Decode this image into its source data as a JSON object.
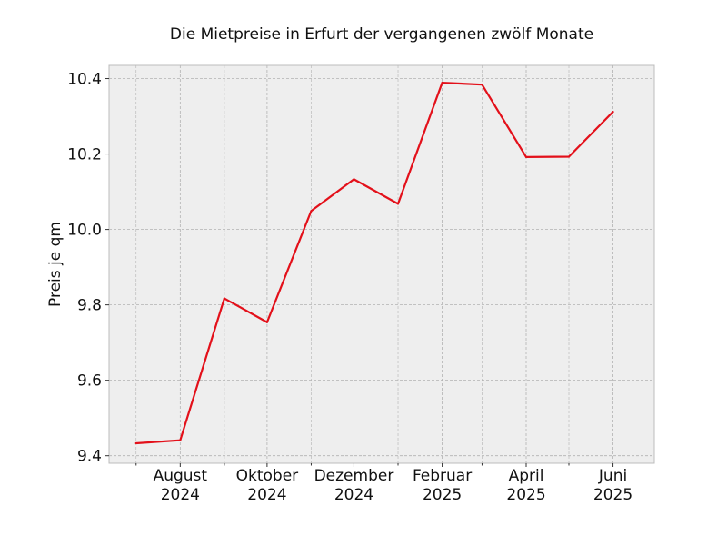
{
  "chart_data": {
    "type": "line",
    "title": "Die Mietpreise in Erfurt der vergangenen zwölf Monate",
    "xlabel": "",
    "ylabel": "Preis je qm",
    "x": [
      "2024-07",
      "2024-08",
      "2024-09",
      "2024-10",
      "2024-11",
      "2024-12",
      "2025-01",
      "2025-02",
      "2025-03",
      "2025-04",
      "2025-05",
      "2025-06"
    ],
    "series": [
      {
        "values": [
          9.433,
          9.441,
          9.817,
          9.754,
          10.049,
          10.133,
          10.068,
          10.389,
          10.384,
          10.192,
          10.193,
          10.312
        ],
        "color": "#e3101a"
      }
    ],
    "ylim": [
      9.38,
      10.435
    ],
    "xlim": [
      "2024-06-12",
      "2025-06-30"
    ],
    "y_ticks": [
      "9.4",
      "9.6",
      "9.8",
      "10.0",
      "10.2",
      "10.4"
    ],
    "y_tick_values": [
      9.4,
      9.6,
      9.8,
      10.0,
      10.2,
      10.4
    ],
    "x_ticks": [
      {
        "date": "2024-08",
        "month": "August",
        "year": "2024"
      },
      {
        "date": "2024-10",
        "month": "Oktober",
        "year": "2024"
      },
      {
        "date": "2024-12",
        "month": "Dezember",
        "year": "2024"
      },
      {
        "date": "2025-02",
        "month": "Februar",
        "year": "2025"
      },
      {
        "date": "2025-04",
        "month": "April",
        "year": "2025"
      },
      {
        "date": "2025-06",
        "month": "Juni",
        "year": "2025"
      }
    ],
    "minor_x_ticks": [
      "2024-07",
      "2024-09",
      "2024-11",
      "2025-01",
      "2025-03",
      "2025-05"
    ],
    "grid": true,
    "plot_background": "#eeeeee",
    "grid_color": "#b2b2b2",
    "spine_color": "#bcbcbc"
  }
}
